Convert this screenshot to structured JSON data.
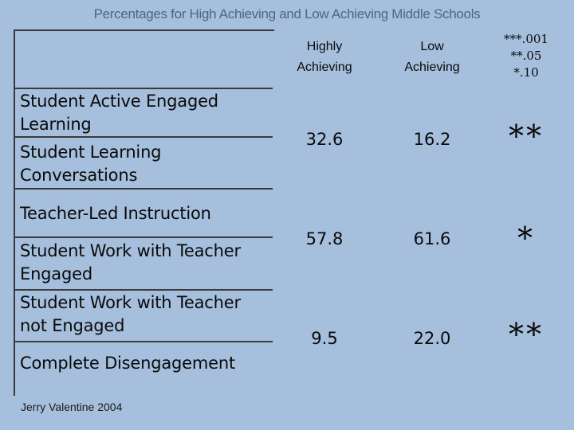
{
  "title": "Percentages for High Achieving and Low Achieving Middle Schools",
  "headers": {
    "high": [
      "Highly",
      "Achieving"
    ],
    "low": [
      "Low",
      "Achieving"
    ],
    "significance": [
      "***.001",
      "**.05",
      "*.10"
    ]
  },
  "rows": [
    "Student Active Engaged Learning",
    "Student Learning Conversations",
    "Teacher-Led Instruction",
    "Student Work with Teacher Engaged",
    "Student Work with Teacher not Engaged",
    "Complete Disengagement"
  ],
  "groups": [
    {
      "high": "32.6",
      "low": "16.2",
      "sig": "**"
    },
    {
      "high": "57.8",
      "low": "61.6",
      "sig": "*"
    },
    {
      "high": "9.5",
      "low": "22.0",
      "sig": "**"
    }
  ],
  "credit": "Jerry Valentine 2004"
}
